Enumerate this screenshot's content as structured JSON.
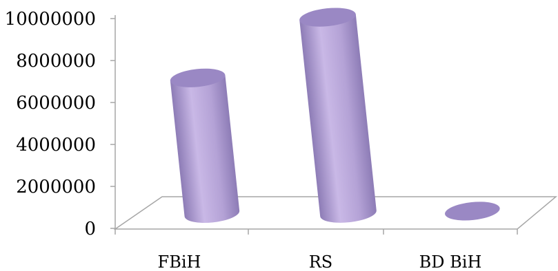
{
  "chart_data": {
    "type": "bar",
    "style": "3d-cylinder",
    "title": "",
    "xlabel": "",
    "ylabel": "",
    "categories": [
      "FBiH",
      "RS",
      "BD BiH"
    ],
    "series": [
      {
        "values": [
          6500000,
          9400000,
          100000
        ]
      }
    ],
    "ylim": [
      0,
      10000000
    ],
    "yticks": [
      0,
      2000000,
      4000000,
      6000000,
      8000000,
      10000000
    ],
    "ytick_labels": [
      "0",
      "2000000",
      "4000000",
      "6000000",
      "8000000",
      "10000000"
    ],
    "grid": false,
    "legend": "none",
    "colors": {
      "bar_light": "#c9b8e6",
      "bar_mid": "#b4a2d6",
      "bar_dark": "#8d7cb6",
      "bar_top": "#9a88c4",
      "floor_line": "#a6a6a6"
    }
  }
}
